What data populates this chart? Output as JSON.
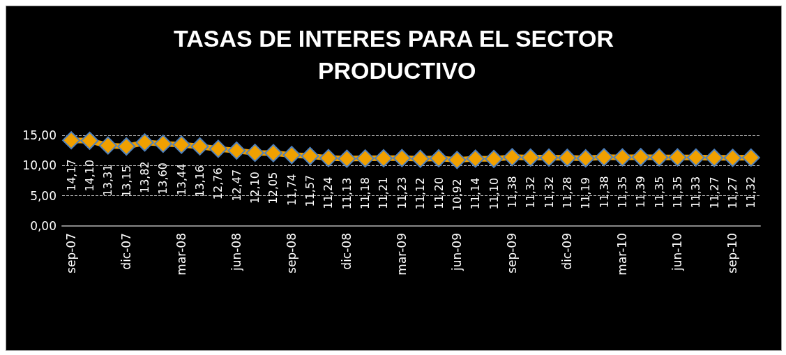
{
  "chart_data": {
    "type": "line",
    "title": "TASAS DE INTERES PARA EL SECTOR PRODUCTIVO",
    "categories": [
      "sep-07",
      null,
      null,
      "dic-07",
      null,
      null,
      "mar-08",
      null,
      null,
      "jun-08",
      null,
      null,
      "sep-08",
      null,
      null,
      "dic-08",
      null,
      null,
      "mar-09",
      null,
      null,
      "jun-09",
      null,
      null,
      "sep-09",
      null,
      null,
      "dic-09",
      null,
      null,
      "mar-10",
      null,
      null,
      "jun-10",
      null,
      null,
      "sep-10",
      null
    ],
    "series": [
      {
        "color": "#f0a000",
        "values": [
          14.17,
          14.1,
          13.31,
          13.15,
          13.82,
          13.6,
          13.44,
          13.16,
          12.76,
          12.47,
          12.1,
          12.05,
          11.74,
          11.57,
          11.24,
          11.13,
          11.18,
          11.21,
          11.23,
          11.12,
          11.2,
          10.92,
          11.14,
          11.1,
          11.38,
          11.32,
          11.32,
          11.28,
          11.19,
          11.38,
          11.35,
          11.39,
          11.35,
          11.35,
          11.33,
          11.27,
          11.27,
          11.32
        ],
        "value_labels": [
          "14,17",
          "14,10",
          "13,31",
          "13,15",
          "13,82",
          "13,60",
          "13,44",
          "13,16",
          "12,76",
          "12,47",
          "12,10",
          "12,05",
          "11,74",
          "11,57",
          "11,24",
          "11,13",
          "11,18",
          "11,21",
          "11,23",
          "11,12",
          "11,20",
          "10,92",
          "11,14",
          "11,10",
          "11,38",
          "11,32",
          "11,32",
          "11,28",
          "11,19",
          "11,38",
          "11,35",
          "11,39",
          "11,35",
          "11,35",
          "11,33",
          "11,27",
          "11,27",
          "11,32"
        ]
      }
    ],
    "ylim": [
      0,
      15
    ],
    "yticks": [
      {
        "value": 0,
        "label": "0,00"
      },
      {
        "value": 5,
        "label": "5,00"
      },
      {
        "value": 10,
        "label": "10,00"
      },
      {
        "value": 15,
        "label": "15,00"
      }
    ],
    "grid": "y",
    "marker": "diamond",
    "line_style": "solid"
  }
}
